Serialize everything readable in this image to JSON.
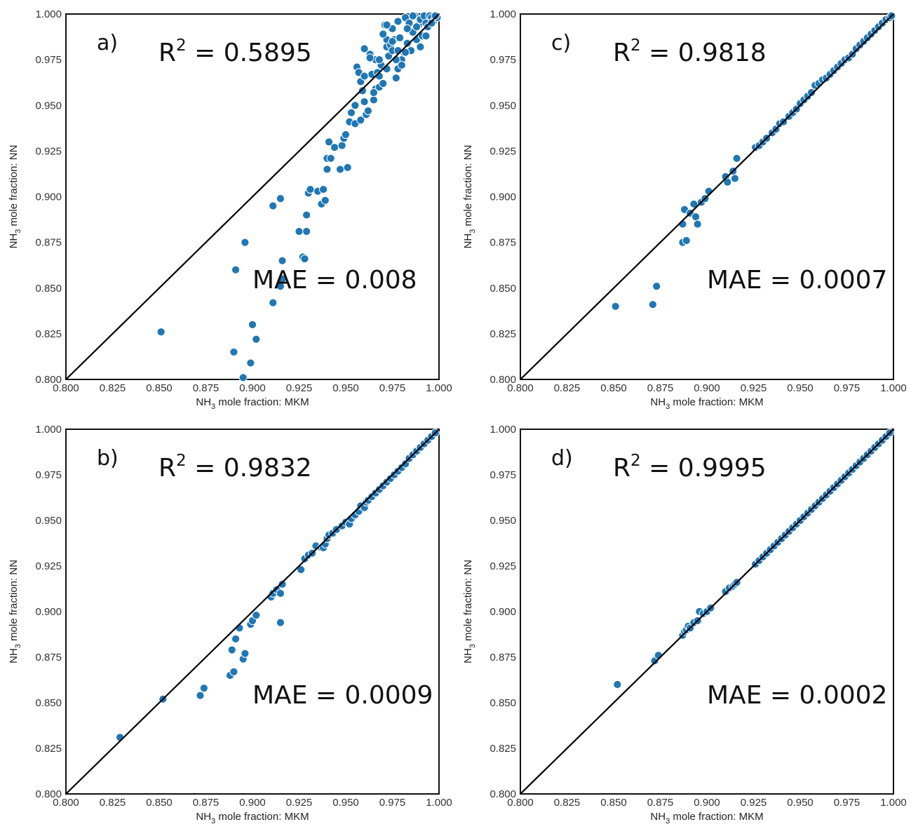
{
  "chart_data": [
    {
      "type": "scatter",
      "panel_label": "a)",
      "r2_label": "R",
      "r2_sup": "2",
      "r2_value": " = 0.5895",
      "mae_text": "MAE = 0.008",
      "xlabel_pre": "NH",
      "xlabel_sub": "3",
      "xlabel_post": " mole fraction: MKM",
      "ylabel_pre": "NH",
      "ylabel_sub": "3",
      "ylabel_post": " mole fraction: NN",
      "xlim": [
        0.8,
        1.0
      ],
      "ylim": [
        0.8,
        1.0
      ],
      "xticks": [
        "0.800",
        "0.825",
        "0.850",
        "0.875",
        "0.900",
        "0.925",
        "0.950",
        "0.975",
        "1.000"
      ],
      "yticks": [
        "0.800",
        "0.825",
        "0.850",
        "0.875",
        "0.900",
        "0.925",
        "0.950",
        "0.975",
        "1.000"
      ],
      "identity_line": true,
      "x": [
        0.851,
        0.89,
        0.891,
        0.895,
        0.896,
        0.899,
        0.9,
        0.902,
        0.911,
        0.911,
        0.915,
        0.915,
        0.916,
        0.916,
        0.925,
        0.927,
        0.928,
        0.929,
        0.929,
        0.93,
        0.931,
        0.935,
        0.937,
        0.938,
        0.939,
        0.94,
        0.94,
        0.941,
        0.942,
        0.944,
        0.947,
        0.948,
        0.949,
        0.95,
        0.951,
        0.952,
        0.953,
        0.955,
        0.955,
        0.956,
        0.957,
        0.958,
        0.958,
        0.959,
        0.96,
        0.96,
        0.961,
        0.962,
        0.963,
        0.964,
        0.965,
        0.966,
        0.966,
        0.967,
        0.968,
        0.968,
        0.969,
        0.97,
        0.971,
        0.972,
        0.972,
        0.973,
        0.974,
        0.975,
        0.975,
        0.976,
        0.977,
        0.978,
        0.978,
        0.979,
        0.98,
        0.981,
        0.982,
        0.983,
        0.984,
        0.985,
        0.986,
        0.987,
        0.988,
        0.989,
        0.99,
        0.991,
        0.992,
        0.993,
        0.994,
        0.995,
        0.996,
        0.997,
        0.998,
        0.999,
        0.958,
        0.96,
        0.963,
        0.968,
        0.97,
        0.972,
        0.975,
        0.977,
        0.98,
        0.983,
        0.986,
        0.988,
        0.99,
        0.993,
        0.996,
        0.998,
        0.965,
        0.972,
        0.978,
        0.982
      ],
      "y": [
        0.826,
        0.815,
        0.86,
        0.801,
        0.875,
        0.809,
        0.83,
        0.822,
        0.895,
        0.842,
        0.899,
        0.851,
        0.855,
        0.865,
        0.881,
        0.867,
        0.866,
        0.89,
        0.881,
        0.902,
        0.904,
        0.903,
        0.896,
        0.904,
        0.898,
        0.915,
        0.921,
        0.93,
        0.921,
        0.927,
        0.915,
        0.928,
        0.932,
        0.934,
        0.916,
        0.941,
        0.946,
        0.95,
        0.94,
        0.971,
        0.968,
        0.942,
        0.963,
        0.958,
        0.952,
        0.981,
        0.945,
        0.947,
        0.978,
        0.967,
        0.953,
        0.959,
        0.975,
        0.968,
        0.96,
        0.966,
        0.972,
        0.962,
        0.994,
        0.982,
        0.986,
        0.977,
        0.983,
        0.98,
        0.992,
        0.986,
        0.965,
        0.97,
        0.996,
        0.987,
        0.975,
        0.979,
        0.998,
        0.984,
        0.995,
        0.98,
        0.99,
        0.999,
        0.986,
        0.994,
        0.997,
        0.988,
        0.999,
        0.995,
        0.993,
        0.999,
        0.998,
        0.996,
        0.999,
        0.998,
        0.963,
        0.966,
        0.976,
        0.975,
        0.989,
        0.994,
        0.985,
        0.975,
        0.972,
        0.992,
        0.999,
        0.993,
        0.982,
        0.988,
        0.995,
        0.999,
        0.957,
        0.97,
        0.98,
        0.979
      ]
    },
    {
      "type": "scatter",
      "panel_label": "c)",
      "r2_label": "R",
      "r2_sup": "2",
      "r2_value": " = 0.9818",
      "mae_text": "MAE = 0.0007",
      "xlabel_pre": "NH",
      "xlabel_sub": "3",
      "xlabel_post": " mole fraction: MKM",
      "ylabel_pre": "NH",
      "ylabel_sub": "3",
      "ylabel_post": " mole fraction: NN",
      "xlim": [
        0.8,
        1.0
      ],
      "ylim": [
        0.8,
        1.0
      ],
      "xticks": [
        "0.800",
        "0.825",
        "0.850",
        "0.875",
        "0.900",
        "0.925",
        "0.950",
        "0.975",
        "1.000"
      ],
      "yticks": [
        "0.800",
        "0.825",
        "0.850",
        "0.875",
        "0.900",
        "0.925",
        "0.950",
        "0.975",
        "1.000"
      ],
      "identity_line": true,
      "x": [
        0.851,
        0.871,
        0.873,
        0.887,
        0.887,
        0.888,
        0.889,
        0.891,
        0.893,
        0.894,
        0.895,
        0.897,
        0.899,
        0.901,
        0.91,
        0.911,
        0.914,
        0.915,
        0.916,
        0.926,
        0.928,
        0.93,
        0.932,
        0.935,
        0.937,
        0.939,
        0.941,
        0.944,
        0.946,
        0.948,
        0.95,
        0.952,
        0.954,
        0.956,
        0.958,
        0.96,
        0.962,
        0.964,
        0.966,
        0.968,
        0.97,
        0.972,
        0.974,
        0.976,
        0.978,
        0.98,
        0.982,
        0.984,
        0.986,
        0.988,
        0.99,
        0.992,
        0.994,
        0.996,
        0.998,
        0.999
      ],
      "y": [
        0.84,
        0.841,
        0.851,
        0.875,
        0.885,
        0.893,
        0.876,
        0.891,
        0.896,
        0.889,
        0.885,
        0.897,
        0.899,
        0.903,
        0.911,
        0.908,
        0.914,
        0.91,
        0.921,
        0.927,
        0.928,
        0.93,
        0.932,
        0.935,
        0.937,
        0.94,
        0.941,
        0.944,
        0.946,
        0.948,
        0.951,
        0.953,
        0.955,
        0.957,
        0.961,
        0.962,
        0.964,
        0.965,
        0.967,
        0.969,
        0.971,
        0.973,
        0.975,
        0.976,
        0.978,
        0.981,
        0.983,
        0.985,
        0.987,
        0.989,
        0.991,
        0.993,
        0.995,
        0.997,
        0.998,
        0.999
      ]
    },
    {
      "type": "scatter",
      "panel_label": "b)",
      "r2_label": "R",
      "r2_sup": "2",
      "r2_value": " = 0.9832",
      "mae_text": "MAE = 0.0009",
      "xlabel_pre": "NH",
      "xlabel_sub": "3",
      "xlabel_post": " mole fraction: MKM",
      "ylabel_pre": "NH",
      "ylabel_sub": "3",
      "ylabel_post": " mole fraction: NN",
      "xlim": [
        0.8,
        1.0
      ],
      "ylim": [
        0.8,
        1.0
      ],
      "xticks": [
        "0.800",
        "0.825",
        "0.850",
        "0.875",
        "0.900",
        "0.925",
        "0.950",
        "0.975",
        "1.000"
      ],
      "yticks": [
        "0.800",
        "0.825",
        "0.850",
        "0.875",
        "0.900",
        "0.925",
        "0.950",
        "0.975",
        "1.000"
      ],
      "identity_line": true,
      "x": [
        0.829,
        0.852,
        0.872,
        0.874,
        0.888,
        0.889,
        0.89,
        0.891,
        0.893,
        0.895,
        0.896,
        0.899,
        0.9,
        0.902,
        0.91,
        0.911,
        0.913,
        0.915,
        0.915,
        0.916,
        0.926,
        0.928,
        0.93,
        0.932,
        0.934,
        0.937,
        0.938,
        0.939,
        0.94,
        0.941,
        0.943,
        0.945,
        0.948,
        0.95,
        0.952,
        0.953,
        0.955,
        0.957,
        0.958,
        0.96,
        0.961,
        0.962,
        0.964,
        0.966,
        0.968,
        0.97,
        0.972,
        0.974,
        0.976,
        0.978,
        0.98,
        0.982,
        0.984,
        0.986,
        0.988,
        0.99,
        0.992,
        0.994,
        0.996,
        0.998
      ],
      "y": [
        0.831,
        0.852,
        0.854,
        0.858,
        0.865,
        0.879,
        0.867,
        0.885,
        0.891,
        0.874,
        0.877,
        0.893,
        0.895,
        0.898,
        0.908,
        0.91,
        0.912,
        0.894,
        0.91,
        0.915,
        0.923,
        0.929,
        0.931,
        0.932,
        0.936,
        0.935,
        0.935,
        0.937,
        0.94,
        0.942,
        0.943,
        0.945,
        0.947,
        0.949,
        0.948,
        0.951,
        0.953,
        0.955,
        0.958,
        0.957,
        0.96,
        0.961,
        0.963,
        0.965,
        0.967,
        0.969,
        0.971,
        0.973,
        0.975,
        0.977,
        0.979,
        0.981,
        0.984,
        0.986,
        0.988,
        0.99,
        0.992,
        0.994,
        0.996,
        0.998
      ]
    },
    {
      "type": "scatter",
      "panel_label": "d)",
      "r2_label": "R",
      "r2_sup": "2",
      "r2_value": " = 0.9995",
      "mae_text": "MAE = 0.0002",
      "xlabel_pre": "NH",
      "xlabel_sub": "3",
      "xlabel_post": " mole fraction: MKM",
      "ylabel_pre": "NH",
      "ylabel_sub": "3",
      "ylabel_post": " mole fraction: NN",
      "xlim": [
        0.8,
        1.0
      ],
      "ylim": [
        0.8,
        1.0
      ],
      "xticks": [
        "0.800",
        "0.825",
        "0.850",
        "0.875",
        "0.900",
        "0.925",
        "0.950",
        "0.975",
        "1.000"
      ],
      "yticks": [
        "0.800",
        "0.825",
        "0.850",
        "0.875",
        "0.900",
        "0.925",
        "0.950",
        "0.975",
        "1.000"
      ],
      "identity_line": true,
      "x": [
        0.852,
        0.872,
        0.874,
        0.887,
        0.888,
        0.889,
        0.89,
        0.891,
        0.893,
        0.895,
        0.896,
        0.898,
        0.9,
        0.902,
        0.91,
        0.912,
        0.914,
        0.915,
        0.916,
        0.926,
        0.928,
        0.93,
        0.932,
        0.934,
        0.936,
        0.938,
        0.94,
        0.942,
        0.944,
        0.946,
        0.948,
        0.95,
        0.952,
        0.954,
        0.956,
        0.958,
        0.96,
        0.962,
        0.964,
        0.966,
        0.968,
        0.97,
        0.972,
        0.974,
        0.976,
        0.978,
        0.98,
        0.982,
        0.984,
        0.986,
        0.988,
        0.99,
        0.992,
        0.994,
        0.996,
        0.998
      ],
      "y": [
        0.86,
        0.873,
        0.876,
        0.887,
        0.889,
        0.89,
        0.892,
        0.891,
        0.894,
        0.895,
        0.9,
        0.899,
        0.9,
        0.902,
        0.911,
        0.913,
        0.914,
        0.915,
        0.916,
        0.926,
        0.928,
        0.93,
        0.932,
        0.934,
        0.936,
        0.938,
        0.94,
        0.942,
        0.944,
        0.946,
        0.948,
        0.95,
        0.952,
        0.954,
        0.956,
        0.958,
        0.96,
        0.962,
        0.964,
        0.966,
        0.968,
        0.97,
        0.972,
        0.974,
        0.976,
        0.978,
        0.98,
        0.982,
        0.984,
        0.986,
        0.988,
        0.99,
        0.992,
        0.994,
        0.996,
        0.998
      ]
    }
  ]
}
